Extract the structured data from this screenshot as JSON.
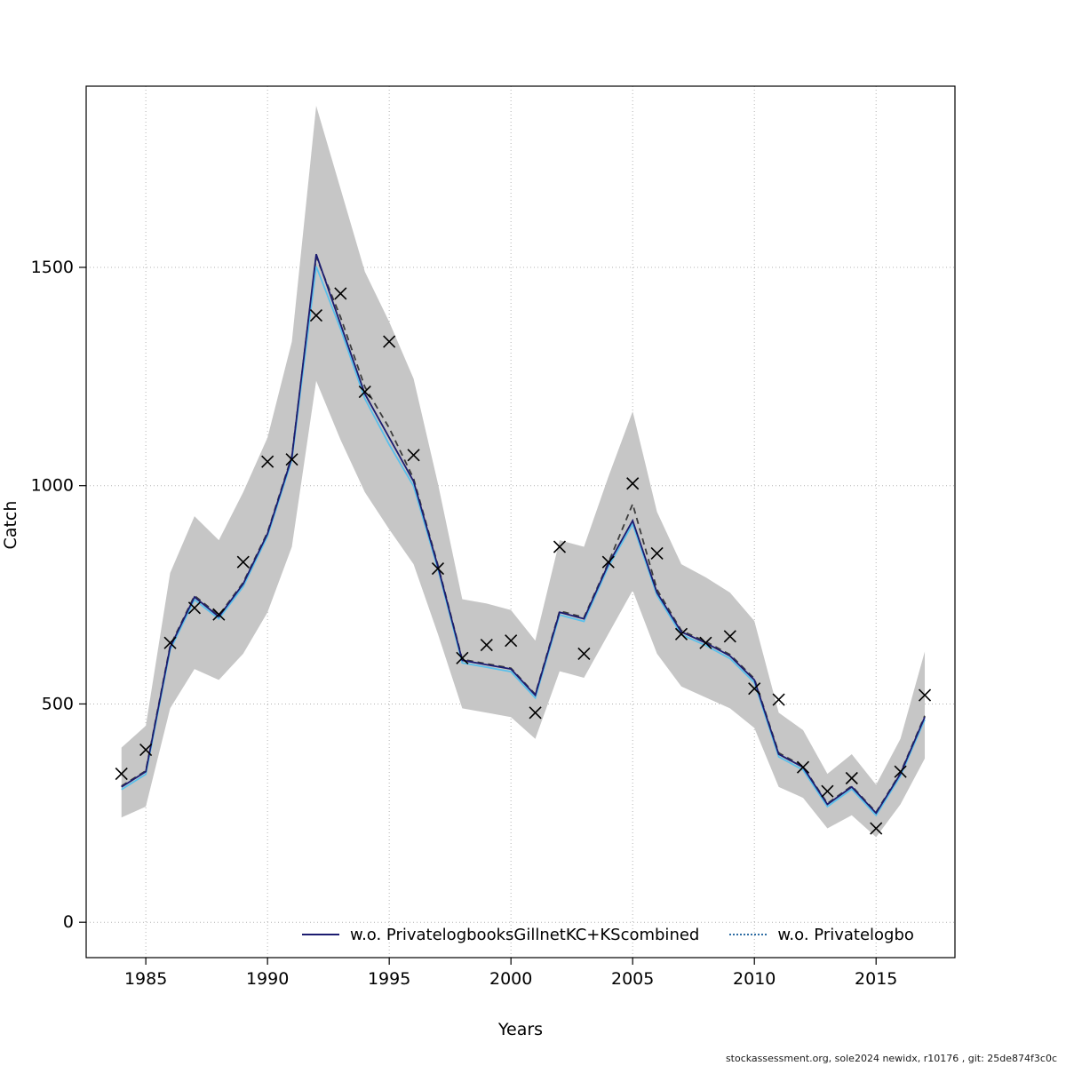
{
  "figure": {
    "footer": "stockassessment.org, sole2024 newidx, r10176 , git: 25de874f3c0c",
    "legend": [
      {
        "label": "w.o. PrivatelogbooksGillnetKC+KScombined",
        "style": "solid",
        "color": "#1c1c70"
      },
      {
        "label": "w.o. Privatelogbo",
        "style": "dotted",
        "color": "#2e6da4"
      }
    ]
  },
  "chart_data": {
    "type": "line",
    "title": "",
    "xlabel": "Years",
    "ylabel": "Catch",
    "xlim": [
      1982.55,
      2018.24
    ],
    "ylim": [
      -81,
      1915
    ],
    "xticks": [
      1985,
      1990,
      1995,
      2000,
      2005,
      2010,
      2015
    ],
    "yticks": [
      0,
      500,
      1000,
      1500
    ],
    "grid": true,
    "grid_color": "#b3b3b3",
    "band_color": "#c6c6c6",
    "marker_color": "#000000",
    "years": [
      1984,
      1985,
      1986,
      1987,
      1988,
      1989,
      1990,
      1991,
      1992,
      1993,
      1994,
      1995,
      1996,
      1997,
      1998,
      1999,
      2000,
      2001,
      2002,
      2003,
      2004,
      2005,
      2006,
      2007,
      2008,
      2009,
      2010,
      2011,
      2012,
      2013,
      2014,
      2015,
      2016,
      2017
    ],
    "band": {
      "lower": [
        240,
        265,
        490,
        580,
        555,
        615,
        710,
        860,
        1240,
        1105,
        985,
        900,
        820,
        660,
        490,
        480,
        470,
        420,
        575,
        560,
        660,
        760,
        615,
        540,
        515,
        490,
        445,
        310,
        285,
        215,
        245,
        195,
        270,
        375
      ],
      "upper": [
        400,
        450,
        800,
        930,
        875,
        985,
        1110,
        1330,
        1870,
        1680,
        1490,
        1375,
        1245,
        1005,
        740,
        730,
        715,
        645,
        875,
        860,
        1020,
        1170,
        940,
        820,
        790,
        755,
        690,
        480,
        440,
        340,
        385,
        315,
        420,
        620
      ]
    },
    "series": [
      {
        "name": "base-run",
        "style": "dashed",
        "color": "#3c3c3c",
        "values": [
          312,
          347,
          633,
          748,
          703,
          778,
          893,
          1068,
          1524,
          1386,
          1226,
          1132,
          1016,
          818,
          602,
          592,
          582,
          522,
          713,
          698,
          823,
          958,
          762,
          668,
          643,
          613,
          558,
          388,
          357,
          272,
          312,
          252,
          342,
          473
        ]
      },
      {
        "name": "wo-privatelogbooks",
        "style": "solid",
        "color": "#5bc0eb",
        "values": [
          304,
          339,
          624,
          739,
          695,
          769,
          884,
          1059,
          1502,
          1359,
          1199,
          1094,
          999,
          809,
          594,
          584,
          574,
          514,
          704,
          689,
          814,
          912,
          749,
          659,
          634,
          604,
          549,
          379,
          349,
          265,
          305,
          245,
          335,
          464
        ]
      },
      {
        "name": "wo-privatelogbooks-gillnet-kc-ks-combined",
        "style": "solid",
        "color": "#1c1c70",
        "values": [
          310,
          345,
          630,
          745,
          700,
          775,
          890,
          1065,
          1530,
          1370,
          1210,
          1110,
          1010,
          815,
          600,
          590,
          580,
          520,
          710,
          695,
          820,
          920,
          755,
          665,
          640,
          610,
          555,
          385,
          355,
          270,
          310,
          250,
          340,
          470
        ]
      }
    ],
    "markers": {
      "name": "observed-catch",
      "symbol": "x",
      "values": [
        340,
        395,
        640,
        720,
        705,
        825,
        1055,
        1060,
        1390,
        1440,
        1215,
        1330,
        1070,
        810,
        605,
        635,
        645,
        480,
        860,
        615,
        825,
        1005,
        845,
        660,
        640,
        655,
        535,
        510,
        355,
        300,
        330,
        215,
        345,
        520
      ]
    }
  }
}
